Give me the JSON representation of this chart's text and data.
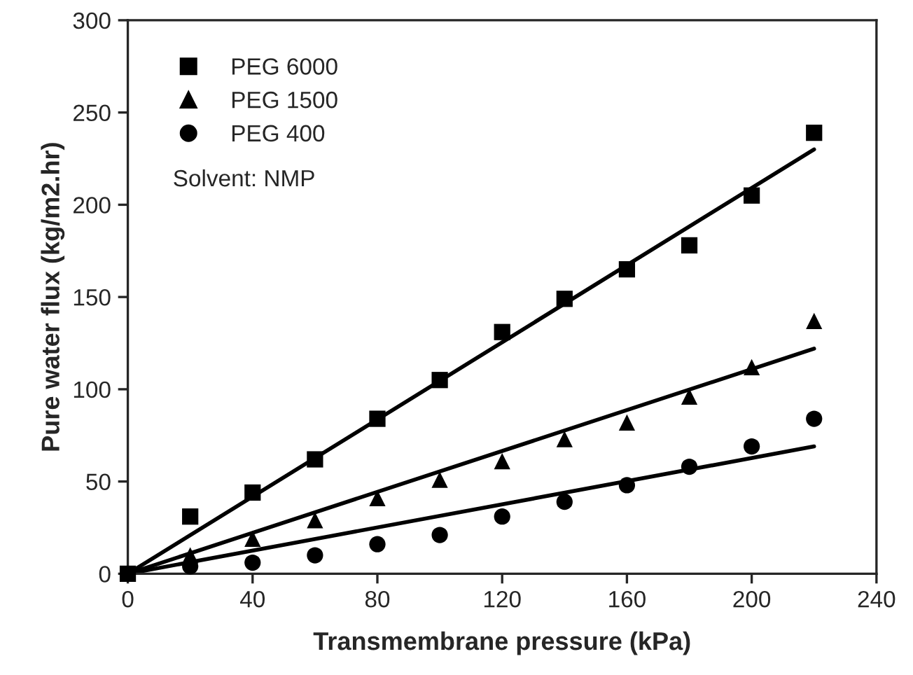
{
  "chart_data": {
    "type": "scatter",
    "xlabel": "Transmembrane pressure (kPa)",
    "ylabel": "Pure water flux (kg/m2.hr)",
    "xlim": [
      0,
      240
    ],
    "xticks": [
      0,
      40,
      80,
      120,
      160,
      200,
      240
    ],
    "ylim": [
      0,
      300
    ],
    "yticks": [
      0,
      50,
      100,
      150,
      200,
      250,
      300
    ],
    "grid": false,
    "legend": "top left",
    "annotations": [
      "Solvent: NMP"
    ],
    "series": [
      {
        "name": "PEG 6000",
        "color": "#000000",
        "marker": "square",
        "x": [
          0,
          20,
          40,
          60,
          80,
          100,
          120,
          140,
          160,
          180,
          200,
          220
        ],
        "values": [
          0,
          31,
          44,
          62,
          84,
          105,
          131,
          149,
          165,
          178,
          205,
          239
        ]
      },
      {
        "name": "PEG 1500",
        "color": "#000000",
        "marker": "triangle",
        "x": [
          20,
          40,
          60,
          80,
          100,
          120,
          140,
          160,
          180,
          200,
          220
        ],
        "values": [
          10,
          19,
          29,
          41,
          51,
          61,
          73,
          82,
          96,
          112,
          137
        ]
      },
      {
        "name": "PEG 400",
        "color": "#000000",
        "marker": "circle",
        "x": [
          20,
          40,
          60,
          80,
          100,
          120,
          140,
          160,
          180,
          200,
          220
        ],
        "values": [
          4,
          6,
          10,
          16,
          21,
          31,
          39,
          48,
          58,
          69,
          84
        ]
      },
      {
        "type": "line",
        "color": "#000000",
        "line_style": "solid",
        "x": [
          0,
          220
        ],
        "values": [
          0,
          230
        ]
      },
      {
        "type": "line",
        "color": "#000000",
        "line_style": "solid",
        "x": [
          0,
          220
        ],
        "values": [
          0,
          122
        ]
      },
      {
        "type": "line",
        "color": "#000000",
        "line_style": "solid",
        "x": [
          0,
          220
        ],
        "values": [
          0,
          69
        ]
      }
    ]
  }
}
